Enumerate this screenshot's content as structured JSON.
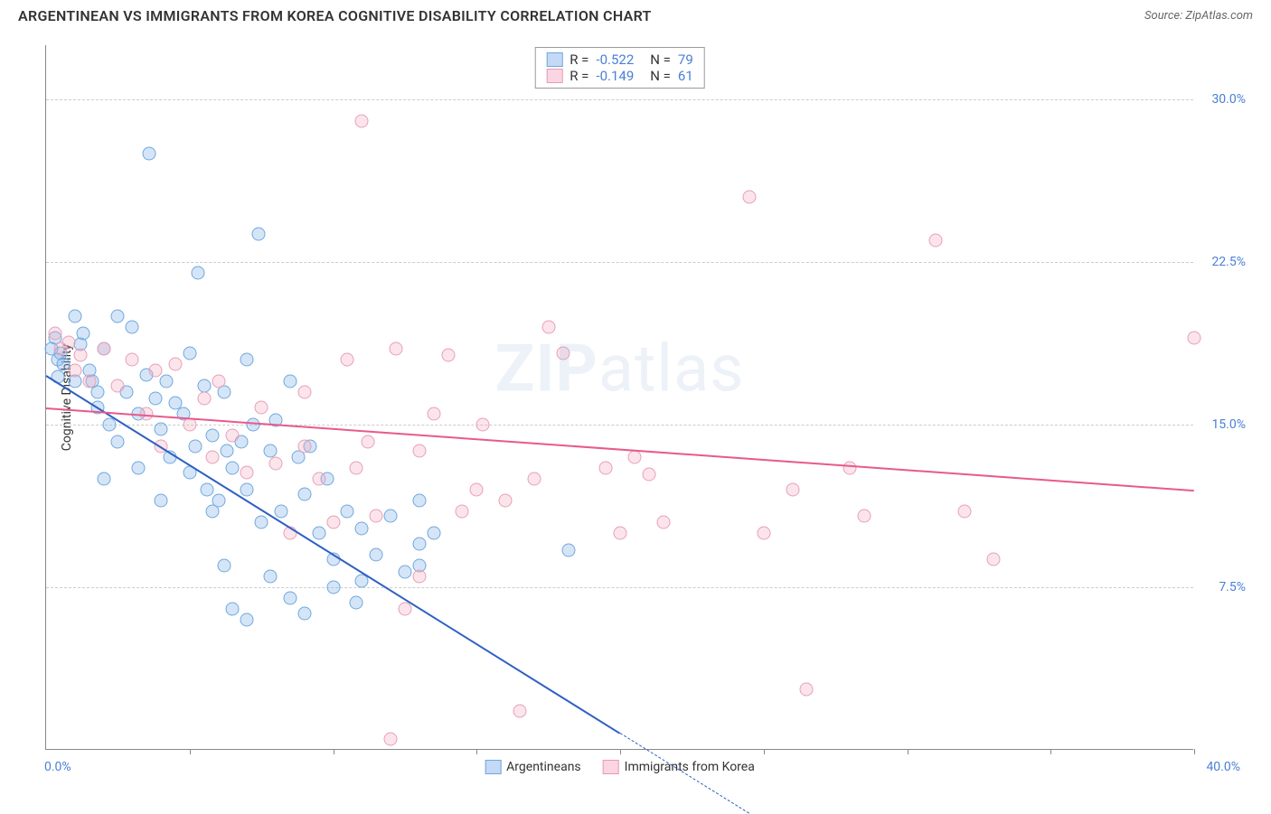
{
  "header": {
    "title": "ARGENTINEAN VS IMMIGRANTS FROM KOREA COGNITIVE DISABILITY CORRELATION CHART",
    "source": "Source: ZipAtlas.com"
  },
  "watermark": {
    "zip": "ZIP",
    "atlas": "atlas"
  },
  "chart": {
    "type": "scatter",
    "y_axis_title": "Cognitive Disability",
    "x_range": [
      0,
      40
    ],
    "y_range": [
      0,
      32.5
    ],
    "x_ticks": [
      5,
      10,
      15,
      20,
      25,
      30,
      35,
      40
    ],
    "y_gridlines": [
      7.5,
      15.0,
      22.5,
      30.0
    ],
    "y_tick_labels": [
      "7.5%",
      "15.0%",
      "22.5%",
      "30.0%"
    ],
    "x_label_start": "0.0%",
    "x_label_end": "40.0%",
    "grid_color": "#cccccc",
    "axis_color": "#888888",
    "background_color": "#ffffff",
    "series": [
      {
        "key": "a",
        "name": "Argentineans",
        "color_fill": "rgba(135,180,235,0.35)",
        "color_stroke": "#6fa8dc",
        "trend_color": "#2d5fc4",
        "R": "-0.522",
        "N": "79",
        "trend": {
          "x1": 0,
          "y1": 17.3,
          "x2": 20,
          "y2": 0.8
        },
        "trend_dash": {
          "x1": 20,
          "y1": 0.8,
          "x2": 24.5,
          "y2": -2.9
        },
        "points": [
          [
            0.2,
            18.5
          ],
          [
            0.3,
            19.0
          ],
          [
            0.4,
            18.0
          ],
          [
            0.4,
            17.2
          ],
          [
            0.5,
            18.3
          ],
          [
            0.6,
            17.8
          ],
          [
            1.0,
            17.0
          ],
          [
            1.0,
            20.0
          ],
          [
            1.2,
            18.7
          ],
          [
            1.3,
            19.2
          ],
          [
            1.5,
            17.5
          ],
          [
            1.6,
            17.0
          ],
          [
            1.8,
            15.8
          ],
          [
            2.0,
            18.5
          ],
          [
            2.2,
            15.0
          ],
          [
            2.5,
            20.0
          ],
          [
            2.8,
            16.5
          ],
          [
            3.0,
            19.5
          ],
          [
            3.2,
            15.5
          ],
          [
            3.5,
            17.3
          ],
          [
            3.6,
            27.5
          ],
          [
            3.8,
            16.2
          ],
          [
            4.0,
            14.8
          ],
          [
            4.2,
            17.0
          ],
          [
            4.3,
            13.5
          ],
          [
            4.5,
            16.0
          ],
          [
            4.8,
            15.5
          ],
          [
            5.0,
            18.3
          ],
          [
            5.0,
            12.8
          ],
          [
            5.2,
            14.0
          ],
          [
            5.3,
            22.0
          ],
          [
            5.5,
            16.8
          ],
          [
            5.6,
            12.0
          ],
          [
            5.8,
            14.5
          ],
          [
            6.0,
            11.5
          ],
          [
            6.2,
            16.5
          ],
          [
            6.2,
            8.5
          ],
          [
            6.5,
            13.0
          ],
          [
            6.5,
            6.5
          ],
          [
            6.8,
            14.2
          ],
          [
            7.0,
            18.0
          ],
          [
            7.0,
            12.0
          ],
          [
            7.0,
            6.0
          ],
          [
            7.2,
            15.0
          ],
          [
            7.4,
            23.8
          ],
          [
            7.5,
            10.5
          ],
          [
            7.8,
            13.8
          ],
          [
            7.8,
            8.0
          ],
          [
            8.0,
            15.2
          ],
          [
            8.2,
            11.0
          ],
          [
            8.5,
            17.0
          ],
          [
            8.5,
            7.0
          ],
          [
            8.8,
            13.5
          ],
          [
            9.0,
            11.8
          ],
          [
            9.0,
            6.3
          ],
          [
            9.2,
            14.0
          ],
          [
            9.5,
            10.0
          ],
          [
            9.8,
            12.5
          ],
          [
            10.0,
            8.8
          ],
          [
            10.0,
            7.5
          ],
          [
            10.5,
            11.0
          ],
          [
            10.8,
            6.8
          ],
          [
            11.0,
            10.2
          ],
          [
            11.0,
            7.8
          ],
          [
            11.5,
            9.0
          ],
          [
            12.0,
            10.8
          ],
          [
            12.5,
            8.2
          ],
          [
            13.0,
            9.5
          ],
          [
            13.0,
            11.5
          ],
          [
            13.0,
            8.5
          ],
          [
            13.5,
            10.0
          ],
          [
            18.2,
            9.2
          ],
          [
            5.8,
            11.0
          ],
          [
            6.3,
            13.8
          ],
          [
            4.0,
            11.5
          ],
          [
            3.2,
            13.0
          ],
          [
            2.5,
            14.2
          ],
          [
            1.8,
            16.5
          ],
          [
            2.0,
            12.5
          ]
        ]
      },
      {
        "key": "b",
        "name": "Immigrants from Korea",
        "color_fill": "rgba(244,164,190,0.3)",
        "color_stroke": "#e6a0b8",
        "trend_color": "#e85a8a",
        "R": "-0.149",
        "N": "61",
        "trend": {
          "x1": 0,
          "y1": 15.8,
          "x2": 40,
          "y2": 12.0
        },
        "points": [
          [
            0.3,
            19.2
          ],
          [
            0.5,
            18.5
          ],
          [
            0.8,
            18.8
          ],
          [
            1.0,
            17.5
          ],
          [
            1.2,
            18.2
          ],
          [
            1.5,
            17.0
          ],
          [
            2.0,
            18.5
          ],
          [
            2.5,
            16.8
          ],
          [
            3.0,
            18.0
          ],
          [
            3.5,
            15.5
          ],
          [
            3.8,
            17.5
          ],
          [
            4.0,
            14.0
          ],
          [
            4.5,
            17.8
          ],
          [
            5.0,
            15.0
          ],
          [
            5.5,
            16.2
          ],
          [
            5.8,
            13.5
          ],
          [
            6.0,
            17.0
          ],
          [
            6.5,
            14.5
          ],
          [
            7.0,
            12.8
          ],
          [
            7.5,
            15.8
          ],
          [
            8.0,
            13.2
          ],
          [
            8.5,
            10.0
          ],
          [
            9.0,
            14.0
          ],
          [
            9.5,
            12.5
          ],
          [
            10.0,
            10.5
          ],
          [
            10.5,
            18.0
          ],
          [
            11.0,
            29.0
          ],
          [
            11.2,
            14.2
          ],
          [
            11.5,
            10.8
          ],
          [
            12.0,
            0.5
          ],
          [
            12.2,
            18.5
          ],
          [
            12.5,
            6.5
          ],
          [
            13.0,
            13.8
          ],
          [
            13.5,
            15.5
          ],
          [
            14.0,
            18.2
          ],
          [
            15.0,
            12.0
          ],
          [
            15.2,
            15.0
          ],
          [
            16.0,
            11.5
          ],
          [
            16.5,
            1.8
          ],
          [
            17.0,
            12.5
          ],
          [
            17.5,
            19.5
          ],
          [
            18.0,
            18.3
          ],
          [
            19.5,
            13.0
          ],
          [
            20.0,
            10.0
          ],
          [
            20.5,
            13.5
          ],
          [
            21.0,
            12.7
          ],
          [
            21.5,
            10.5
          ],
          [
            24.5,
            25.5
          ],
          [
            25.0,
            10.0
          ],
          [
            26.0,
            12.0
          ],
          [
            26.5,
            2.8
          ],
          [
            28.0,
            13.0
          ],
          [
            28.5,
            10.8
          ],
          [
            31.0,
            23.5
          ],
          [
            32.0,
            11.0
          ],
          [
            33.0,
            8.8
          ],
          [
            40.0,
            19.0
          ],
          [
            13.0,
            8.0
          ],
          [
            14.5,
            11.0
          ],
          [
            9.0,
            16.5
          ],
          [
            10.8,
            13.0
          ]
        ]
      }
    ],
    "legend_top": {
      "R_label": "R =",
      "N_label": "N ="
    },
    "legend_bottom_order": [
      "a",
      "b"
    ]
  }
}
